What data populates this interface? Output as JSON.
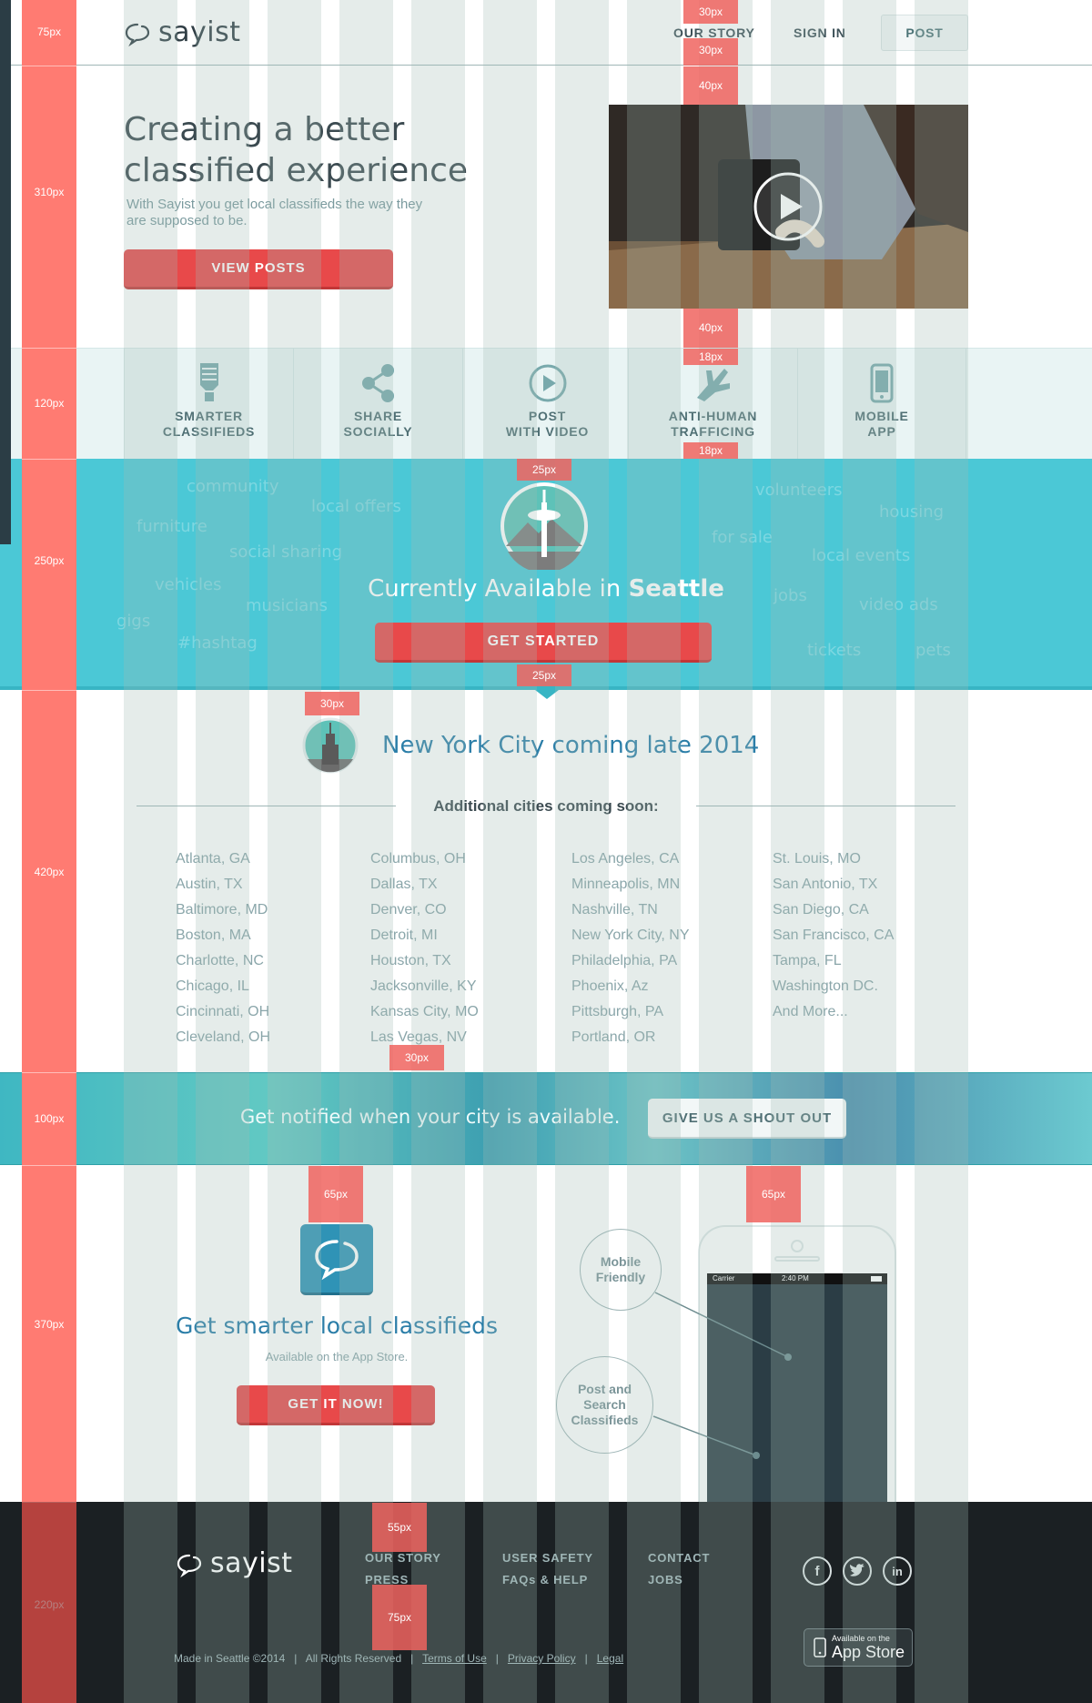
{
  "header": {
    "logo_text": "sayist",
    "nav": {
      "our_story": "OUR STORY",
      "sign_in": "SIGN IN",
      "post": "POST"
    }
  },
  "ruler": {
    "labels": [
      "75px",
      "310px",
      "120px",
      "250px",
      "420px",
      "100px",
      "370px",
      "220px"
    ]
  },
  "marks": {
    "top_30a": "30px",
    "top_30b": "30px",
    "top_40a": "40px",
    "top_40b": "40px",
    "feat_18a": "18px",
    "feat_18b": "18px",
    "seattle_25a": "25px",
    "seattle_25b": "25px",
    "nyc_30": "30px",
    "cities_30": "30px",
    "app_65a": "65px",
    "app_65b": "65px",
    "foot_55": "55px",
    "foot_75": "75px"
  },
  "hero": {
    "title_line1": "Creating a better",
    "title_line2": "classified experience",
    "subtitle": "With Sayist you get local classifieds the way they are supposed to be.",
    "cta": "VIEW POSTS"
  },
  "features": [
    {
      "icon": "lightbulb-icon",
      "line1": "SMARTER",
      "line2": "CLASSIFIEDS"
    },
    {
      "icon": "share-icon",
      "line1": "SHARE",
      "line2": "SOCIALLY"
    },
    {
      "icon": "play-icon",
      "line1": "POST",
      "line2": "WITH VIDEO"
    },
    {
      "icon": "hand-icon",
      "line1": "ANTI-HUMAN",
      "line2": "TRAFFICING"
    },
    {
      "icon": "mobile-icon",
      "line1": "MOBILE",
      "line2": "APP"
    }
  ],
  "seattle": {
    "text_prefix": "Currently Available in ",
    "city": "Seattle",
    "cta": "GET STARTED",
    "tags": [
      "community",
      "local offers",
      "furniture",
      "social sharing",
      "vehicles",
      "musicians",
      "gigs",
      "#hashtag",
      "volunteers",
      "housing",
      "for sale",
      "local events",
      "jobs",
      "video ads",
      "tickets",
      "pets"
    ]
  },
  "cities": {
    "nyc_text": "New York City coming late 2014",
    "additional_heading": "Additional cities coming soon:",
    "col1": [
      "Atlanta, GA",
      "Austin, TX",
      "Baltimore, MD",
      "Boston, MA",
      "Charlotte, NC",
      "Chicago, IL",
      "Cincinnati, OH",
      "Cleveland, OH"
    ],
    "col2": [
      "Columbus, OH",
      "Dallas, TX",
      "Denver, CO",
      "Detroit, MI",
      "Houston, TX",
      "Jacksonville, KY",
      "Kansas City, MO",
      "Las Vegas, NV"
    ],
    "col3": [
      "Los Angeles, CA",
      "Minneapolis, MN",
      "Nashville, TN",
      "New York City, NY",
      "Philadelphia, PA",
      "Phoenix, Az",
      "Pittsburgh, PA",
      "Portland, OR"
    ],
    "col4": [
      "St. Louis, MO",
      "San Antonio, TX",
      "San Diego, CA",
      "San Francisco, CA",
      "Tampa, FL",
      "Washington DC.",
      "And More..."
    ]
  },
  "notify": {
    "text": "Get notified when your city is available.",
    "cta": "GIVE US A SHOUT OUT"
  },
  "app": {
    "title": "Get smarter local classifieds",
    "subtitle": "Available on the App Store.",
    "cta": "GET IT NOW!",
    "phone_carrier": "Carrier",
    "phone_time": "2:40 PM",
    "callout1_line1": "Mobile",
    "callout1_line2": "Friendly",
    "callout2_line1": "Post and",
    "callout2_line2": "Search",
    "callout2_line3": "Classifieds"
  },
  "footer": {
    "logo_text": "sayist",
    "links": {
      "our_story": "OUR STORY",
      "press": "PRESS",
      "user_safety": "USER SAFETY",
      "faqs": "FAQs & HELP",
      "contact": "CONTACT",
      "jobs": "JOBS"
    },
    "copyright": "Made in Seattle ©2014",
    "rights": "All Rights Reserved",
    "terms": "Terms of Use",
    "privacy": "Privacy Policy",
    "legal": "Legal",
    "sep": "|",
    "appstore_small": "Available on the",
    "appstore_big": "App Store"
  },
  "colors": {
    "accent_red": "#e8494a",
    "teal": "#4bc8d6",
    "link_blue": "#2b7ea8",
    "footer_bg": "#1b2023"
  }
}
